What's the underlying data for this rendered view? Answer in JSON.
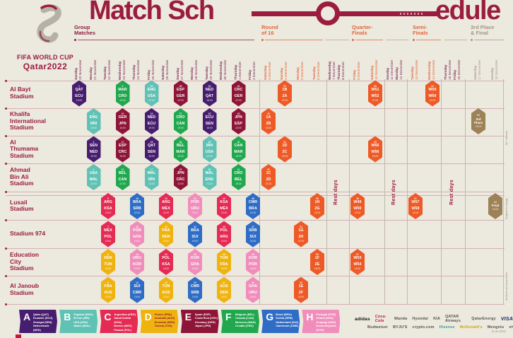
{
  "title": {
    "part1": "Match Sch",
    "part2": "edule"
  },
  "logo": {
    "fifa": "FIFA WORLD CUP",
    "qatar": "Qatar2022"
  },
  "colors": {
    "maroon": "#9b1c3f",
    "cream": "#ece9df",
    "knockout_orange": "#ee5a26",
    "final_tan": "#9d8157",
    "date_group": "#7d2a56",
    "date_knockout": "#e2663a",
    "date_final": "#a79d8a",
    "groups": {
      "A": "#471e6f",
      "B": "#5fc2b4",
      "C": "#e52a53",
      "D": "#efb310",
      "E": "#8e1537",
      "F": "#21a84f",
      "G": "#2f6cc5",
      "H": "#f18dbb",
      "R16": "#ee5a26",
      "FINAL": "#9d8157"
    }
  },
  "sections": [
    {
      "id": "group",
      "lines": "Group\nMatches",
      "color": "#8e1d46"
    },
    {
      "id": "r16",
      "lines": "Round\nof 16",
      "color": "#e2663a"
    },
    {
      "id": "qf",
      "lines": "Quarter-\nFinals",
      "color": "#e2663a"
    },
    {
      "id": "sf",
      "lines": "Semi-\nFinals",
      "color": "#e2663a"
    },
    {
      "id": "final",
      "lines": "3rd Place\n& Final",
      "color": "#a39781"
    }
  ],
  "rest_label": "Rest days",
  "calendar": {
    "columns": [
      {
        "id": "nov20",
        "day": "Sunday",
        "date": "20 November",
        "type": "group"
      },
      {
        "id": "nov21",
        "day": "Monday",
        "date": "21 November",
        "type": "group"
      },
      {
        "id": "nov22",
        "day": "Tuesday",
        "date": "22 November",
        "type": "group"
      },
      {
        "id": "nov23",
        "day": "Wednesday",
        "date": "23 November",
        "type": "group"
      },
      {
        "id": "nov24",
        "day": "Thursday",
        "date": "24 November",
        "type": "group"
      },
      {
        "id": "nov25",
        "day": "Friday",
        "date": "25 November",
        "type": "group"
      },
      {
        "id": "nov26",
        "day": "Saturday",
        "date": "26 November",
        "type": "group"
      },
      {
        "id": "nov27",
        "day": "Sunday",
        "date": "27 November",
        "type": "group"
      },
      {
        "id": "nov28",
        "day": "Monday",
        "date": "28 November",
        "type": "group"
      },
      {
        "id": "nov29",
        "day": "Tuesday",
        "date": "29 November",
        "type": "group"
      },
      {
        "id": "nov30",
        "day": "Wednesday",
        "date": "30 November",
        "type": "group"
      },
      {
        "id": "dec1",
        "day": "Thursday",
        "date": "1 December",
        "type": "group"
      },
      {
        "id": "dec2",
        "day": "Friday",
        "date": "2 December",
        "type": "group"
      },
      {
        "id": "dec3",
        "day": "Saturday",
        "date": "3 December",
        "type": "knockout"
      },
      {
        "id": "dec4",
        "day": "Sunday",
        "date": "4 December",
        "type": "knockout"
      },
      {
        "id": "dec5",
        "day": "Monday",
        "date": "5 December",
        "type": "knockout"
      },
      {
        "id": "dec6",
        "day": "Tuesday",
        "date": "6 December",
        "type": "knockout"
      },
      {
        "id": "dec7",
        "day": "Wednesday",
        "date": "7 December",
        "type": "rest"
      },
      {
        "id": "dec8",
        "day": "Thursday",
        "date": "8 December",
        "type": "rest"
      },
      {
        "id": "dec9",
        "day": "Friday",
        "date": "9 December",
        "type": "knockout"
      },
      {
        "id": "dec10",
        "day": "Saturday",
        "date": "10 December",
        "type": "knockout"
      },
      {
        "id": "dec11",
        "day": "Sunday",
        "date": "11 December",
        "type": "rest"
      },
      {
        "id": "dec12",
        "day": "Monday",
        "date": "12 December",
        "type": "rest"
      },
      {
        "id": "dec13",
        "day": "Tuesday",
        "date": "13 December",
        "type": "knockout"
      },
      {
        "id": "dec14",
        "day": "Wednesday",
        "date": "14 December",
        "type": "knockout"
      },
      {
        "id": "dec15",
        "day": "Thursday",
        "date": "15 December",
        "type": "rest"
      },
      {
        "id": "dec16",
        "day": "Friday",
        "date": "16 December",
        "type": "rest"
      },
      {
        "id": "dec17",
        "day": "Saturday",
        "date": "17 December",
        "type": "final"
      },
      {
        "id": "dec18",
        "day": "Sunday",
        "date": "18 December",
        "type": "final"
      }
    ]
  },
  "stadiums": [
    {
      "name": "Al Bayt\nStadium"
    },
    {
      "name": "Khalifa\nInternational\nStadium"
    },
    {
      "name": "Al\nThumama\nStadium"
    },
    {
      "name": "Ahmad\nBin Ali\nStadium"
    },
    {
      "name": "Lusail\nStadium"
    },
    {
      "name": "Stadium 974"
    },
    {
      "name": "Education\nCity\nStadium"
    },
    {
      "name": "Al Janoub\nStadium"
    }
  ],
  "matches": [
    {
      "n": 1,
      "d": "nov20",
      "s": 0,
      "a": "QAT",
      "b": "ECU",
      "g": "A",
      "t": "19:00"
    },
    {
      "n": 2,
      "d": "nov21",
      "s": 1,
      "a": "ENG",
      "b": "IRN",
      "g": "B",
      "t": "16:00"
    },
    {
      "n": 3,
      "d": "nov21",
      "s": 2,
      "a": "SEN",
      "b": "NED",
      "g": "A",
      "t": "19:00"
    },
    {
      "n": 4,
      "d": "nov21",
      "s": 3,
      "a": "USA",
      "b": "WAL",
      "g": "B",
      "t": "22:00"
    },
    {
      "n": 5,
      "d": "nov22",
      "s": 4,
      "a": "ARG",
      "b": "KSA",
      "g": "C",
      "t": "13:00"
    },
    {
      "n": 6,
      "d": "nov22",
      "s": 6,
      "a": "DEN",
      "b": "TUN",
      "g": "D",
      "t": "16:00"
    },
    {
      "n": 7,
      "d": "nov22",
      "s": 5,
      "a": "MEX",
      "b": "POL",
      "g": "C",
      "t": "19:00"
    },
    {
      "n": 8,
      "d": "nov22",
      "s": 7,
      "a": "FRA",
      "b": "AUS",
      "g": "D",
      "t": "22:00"
    },
    {
      "n": 9,
      "d": "nov23",
      "s": 0,
      "a": "MAR",
      "b": "CRO",
      "g": "F",
      "t": "13:00"
    },
    {
      "n": 10,
      "d": "nov23",
      "s": 1,
      "a": "GER",
      "b": "JPN",
      "g": "E",
      "t": "16:00"
    },
    {
      "n": 11,
      "d": "nov23",
      "s": 2,
      "a": "ESP",
      "b": "CRC",
      "g": "E",
      "t": "19:00"
    },
    {
      "n": 12,
      "d": "nov23",
      "s": 3,
      "a": "BEL",
      "b": "CAN",
      "g": "F",
      "t": "22:00"
    },
    {
      "n": 13,
      "d": "nov24",
      "s": 7,
      "a": "SUI",
      "b": "CMR",
      "g": "G",
      "t": "13:00"
    },
    {
      "n": 14,
      "d": "nov24",
      "s": 6,
      "a": "URU",
      "b": "KOR",
      "g": "H",
      "t": "16:00"
    },
    {
      "n": 15,
      "d": "nov24",
      "s": 5,
      "a": "POR",
      "b": "GHA",
      "g": "H",
      "t": "19:00"
    },
    {
      "n": 16,
      "d": "nov24",
      "s": 4,
      "a": "BRA",
      "b": "SRB",
      "g": "G",
      "t": "22:00"
    },
    {
      "n": 17,
      "d": "nov25",
      "s": 3,
      "a": "WAL",
      "b": "IRN",
      "g": "B",
      "t": "13:00"
    },
    {
      "n": 18,
      "d": "nov25",
      "s": 2,
      "a": "QAT",
      "b": "SEN",
      "g": "A",
      "t": "16:00"
    },
    {
      "n": 19,
      "d": "nov25",
      "s": 1,
      "a": "NED",
      "b": "ECU",
      "g": "A",
      "t": "19:00"
    },
    {
      "n": 20,
      "d": "nov25",
      "s": 0,
      "a": "ENG",
      "b": "USA",
      "g": "B",
      "t": "22:00"
    },
    {
      "n": 21,
      "d": "nov26",
      "s": 7,
      "a": "TUN",
      "b": "AUS",
      "g": "D",
      "t": "13:00"
    },
    {
      "n": 22,
      "d": "nov26",
      "s": 6,
      "a": "POL",
      "b": "KSA",
      "g": "C",
      "t": "16:00"
    },
    {
      "n": 23,
      "d": "nov26",
      "s": 5,
      "a": "FRA",
      "b": "DEN",
      "g": "D",
      "t": "19:00"
    },
    {
      "n": 24,
      "d": "nov26",
      "s": 4,
      "a": "ARG",
      "b": "MEX",
      "g": "C",
      "t": "22:00"
    },
    {
      "n": 25,
      "d": "nov27",
      "s": 3,
      "a": "JPN",
      "b": "CRC",
      "g": "E",
      "t": "13:00"
    },
    {
      "n": 26,
      "d": "nov27",
      "s": 2,
      "a": "BEL",
      "b": "MAR",
      "g": "F",
      "t": "16:00"
    },
    {
      "n": 27,
      "d": "nov27",
      "s": 1,
      "a": "CRO",
      "b": "CAN",
      "g": "F",
      "t": "19:00"
    },
    {
      "n": 28,
      "d": "nov27",
      "s": 0,
      "a": "ESP",
      "b": "GER",
      "g": "E",
      "t": "22:00"
    },
    {
      "n": 29,
      "d": "nov28",
      "s": 7,
      "a": "CMR",
      "b": "SRB",
      "g": "G",
      "t": "13:00"
    },
    {
      "n": 30,
      "d": "nov28",
      "s": 6,
      "a": "KOR",
      "b": "GHA",
      "g": "H",
      "t": "16:00"
    },
    {
      "n": 31,
      "d": "nov28",
      "s": 5,
      "a": "BRA",
      "b": "SUI",
      "g": "G",
      "t": "19:00"
    },
    {
      "n": 32,
      "d": "nov28",
      "s": 4,
      "a": "POR",
      "b": "URU",
      "g": "H",
      "t": "22:00"
    },
    {
      "n": 33,
      "d": "nov29",
      "s": 1,
      "a": "ECU",
      "b": "SEN",
      "g": "A",
      "t": "18:00"
    },
    {
      "n": 34,
      "d": "nov29",
      "s": 0,
      "a": "NED",
      "b": "QAT",
      "g": "A",
      "t": "18:00"
    },
    {
      "n": 35,
      "d": "nov29",
      "s": 2,
      "a": "IRN",
      "b": "USA",
      "g": "B",
      "t": "22:00"
    },
    {
      "n": 36,
      "d": "nov29",
      "s": 3,
      "a": "WAL",
      "b": "ENG",
      "g": "B",
      "t": "22:00"
    },
    {
      "n": 37,
      "d": "nov30",
      "s": 7,
      "a": "AUS",
      "b": "DEN",
      "g": "D",
      "t": "18:00"
    },
    {
      "n": 38,
      "d": "nov30",
      "s": 6,
      "a": "TUN",
      "b": "FRA",
      "g": "D",
      "t": "18:00"
    },
    {
      "n": 39,
      "d": "nov30",
      "s": 5,
      "a": "POL",
      "b": "ARG",
      "g": "C",
      "t": "22:00"
    },
    {
      "n": 40,
      "d": "nov30",
      "s": 4,
      "a": "KSA",
      "b": "MEX",
      "g": "C",
      "t": "22:00"
    },
    {
      "n": 41,
      "d": "dec1",
      "s": 3,
      "a": "CRO",
      "b": "BEL",
      "g": "F",
      "t": "18:00"
    },
    {
      "n": 42,
      "d": "dec1",
      "s": 2,
      "a": "CAN",
      "b": "MAR",
      "g": "F",
      "t": "18:00"
    },
    {
      "n": 43,
      "d": "dec1",
      "s": 1,
      "a": "JPN",
      "b": "ESP",
      "g": "E",
      "t": "22:00"
    },
    {
      "n": 44,
      "d": "dec1",
      "s": 0,
      "a": "CRC",
      "b": "GER",
      "g": "E",
      "t": "22:00"
    },
    {
      "n": 45,
      "d": "dec2",
      "s": 6,
      "a": "KOR",
      "b": "POR",
      "g": "H",
      "t": "18:00"
    },
    {
      "n": 46,
      "d": "dec2",
      "s": 7,
      "a": "GHA",
      "b": "URU",
      "g": "H",
      "t": "18:00"
    },
    {
      "n": 47,
      "d": "dec2",
      "s": 5,
      "a": "SRB",
      "b": "SUI",
      "g": "G",
      "t": "22:00"
    },
    {
      "n": 48,
      "d": "dec2",
      "s": 4,
      "a": "CMR",
      "b": "BRA",
      "g": "G",
      "t": "22:00"
    },
    {
      "n": 49,
      "d": "dec3",
      "s": 1,
      "a": "1A",
      "b": "2B",
      "g": "R16",
      "t": "18:00"
    },
    {
      "n": 50,
      "d": "dec3",
      "s": 3,
      "a": "1C",
      "b": "2D",
      "g": "R16",
      "t": "22:00"
    },
    {
      "n": 51,
      "d": "dec4",
      "s": 2,
      "a": "1D",
      "b": "2C",
      "g": "R16",
      "t": "18:00"
    },
    {
      "n": 52,
      "d": "dec4",
      "s": 0,
      "a": "1B",
      "b": "2A",
      "g": "R16",
      "t": "22:00"
    },
    {
      "n": 53,
      "d": "dec5",
      "s": 7,
      "a": "1E",
      "b": "2F",
      "g": "R16",
      "t": "18:00"
    },
    {
      "n": 54,
      "d": "dec5",
      "s": 5,
      "a": "1G",
      "b": "2H",
      "g": "R16",
      "t": "22:00"
    },
    {
      "n": 55,
      "d": "dec6",
      "s": 6,
      "a": "1F",
      "b": "2E",
      "g": "R16",
      "t": "18:00"
    },
    {
      "n": 56,
      "d": "dec6",
      "s": 4,
      "a": "1H",
      "b": "2G",
      "g": "R16",
      "t": "22:00"
    },
    {
      "n": 57,
      "d": "dec9",
      "s": 6,
      "a": "W53",
      "b": "W54",
      "g": "R16",
      "t": "18:00"
    },
    {
      "n": 58,
      "d": "dec9",
      "s": 4,
      "a": "W49",
      "b": "W50",
      "g": "R16",
      "t": "22:00"
    },
    {
      "n": 59,
      "d": "dec10",
      "s": 2,
      "a": "W55",
      "b": "W56",
      "g": "R16",
      "t": "18:00"
    },
    {
      "n": 60,
      "d": "dec10",
      "s": 0,
      "a": "W51",
      "b": "W52",
      "g": "R16",
      "t": "22:00"
    },
    {
      "n": 61,
      "d": "dec13",
      "s": 4,
      "a": "W57",
      "b": "W58",
      "g": "R16",
      "t": "22:00"
    },
    {
      "n": 62,
      "d": "dec14",
      "s": 0,
      "a": "W59",
      "b": "W60",
      "g": "R16",
      "t": "22:00"
    },
    {
      "n": 63,
      "d": "dec17",
      "s": 1,
      "label": "3rd\nPlace",
      "g": "FINAL",
      "t": "18:00"
    },
    {
      "n": 64,
      "d": "dec18",
      "s": 4,
      "label": "Final",
      "g": "FINAL",
      "t": "18:00"
    }
  ],
  "legend": [
    {
      "letter": "A",
      "color": "#471e6f",
      "text": "#ffffff",
      "teams": [
        "Qatar (QAT)",
        "Ecuador (ECU)",
        "Senegal (SEN)",
        "Netherlands (NED)"
      ]
    },
    {
      "letter": "B",
      "color": "#5fc2b4",
      "text": "#ffffff",
      "teams": [
        "England (ENG)",
        "IR Iran (IRN)",
        "USA (USA)",
        "Wales (WAL)"
      ]
    },
    {
      "letter": "C",
      "color": "#e52a53",
      "text": "#ffffff",
      "teams": [
        "Argentina (ARG)",
        "Saudi Arabia (KSA)",
        "Mexico (MEX)",
        "Poland (POL)"
      ]
    },
    {
      "letter": "D",
      "color": "#efb310",
      "text": "#8e1537",
      "teams": [
        "France (FRA)",
        "Australia (AUS)",
        "Denmark (DEN)",
        "Tunisia (TUN)"
      ]
    },
    {
      "letter": "E",
      "color": "#8e1537",
      "text": "#ffffff",
      "teams": [
        "Spain (ESP)",
        "Costa Rica (CRC)",
        "Germany (GER)",
        "Japan (JPN)"
      ]
    },
    {
      "letter": "F",
      "color": "#21a84f",
      "text": "#ffffff",
      "teams": [
        "Belgium (BEL)",
        "Canada (CAN)",
        "Morocco (MAR)",
        "Croatia (CRO)"
      ]
    },
    {
      "letter": "G",
      "color": "#2f6cc5",
      "text": "#ffffff",
      "teams": [
        "Brazil (BRA)",
        "Serbia (SRB)",
        "Switzerland (SUI)",
        "Cameroon (CMR)"
      ]
    },
    {
      "letter": "H",
      "color": "#f18dbb",
      "text": "#ffffff",
      "teams": [
        "Portugal (POR)",
        "Ghana (GHA)",
        "Uruguay (URU)",
        "Korea Republic (KOR)"
      ]
    }
  ],
  "sponsors": {
    "row1": [
      "adidas",
      "Coca-Cola",
      "Wanda",
      "Hyundai",
      "KIA",
      "QATAR Airways",
      "QatarEnergy",
      "VISA"
    ],
    "row2": [
      "Budweiser",
      "BYJU'S",
      "crypto.com",
      "Hisense",
      "McDonald's",
      "Mengniu",
      "vivo"
    ]
  },
  "notes": {
    "winner": "W = Winner",
    "subject": "Subject to change",
    "local": "All times are local times",
    "version": "11.04.2022"
  }
}
